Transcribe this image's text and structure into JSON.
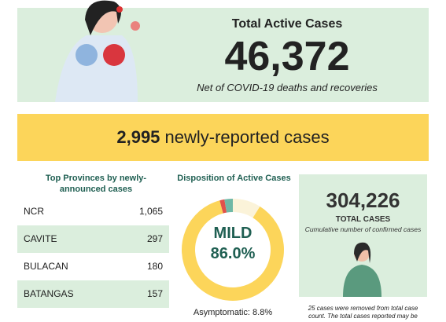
{
  "header": {
    "title": "Total Active Cases",
    "value": "46,372",
    "subtitle": "Net of COVID-19 deaths and recoveries"
  },
  "banner": {
    "value": "2,995",
    "text": " newly-reported cases"
  },
  "provinces": {
    "title": "Top Provinces by newly-announced cases",
    "rows": [
      [
        "NCR",
        "1,065"
      ],
      [
        "CAVITE",
        "297"
      ],
      [
        "BULACAN",
        "180"
      ],
      [
        "BATANGAS",
        "157"
      ]
    ]
  },
  "disposition": {
    "title": "Disposition of Active Cases",
    "center_label": "MILD",
    "center_value": "86.0%",
    "note": "Asymptomatic: 8.8%",
    "segments": [
      {
        "value": 8.8,
        "color": "#fbf3d9"
      },
      {
        "value": 86.0,
        "color": "#fcd55a"
      },
      {
        "value": 1.5,
        "color": "#e0524b"
      },
      {
        "value": 2.6,
        "color": "#6fb8a6"
      }
    ]
  },
  "total": {
    "value": "304,226",
    "label": "TOTAL CASES",
    "subtitle": "Cumulative number of confirmed cases",
    "note": "25 cases were removed from total case count. The total cases reported may be"
  }
}
